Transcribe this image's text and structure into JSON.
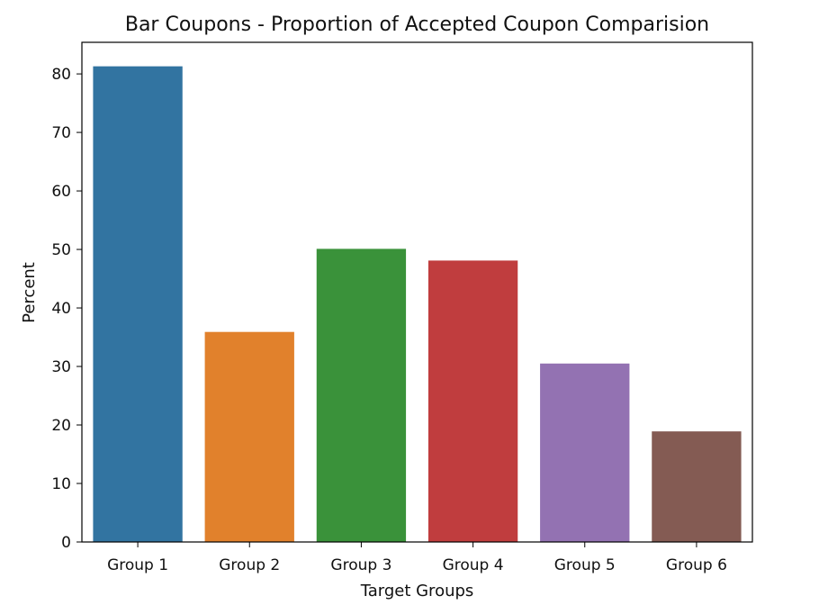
{
  "chart_data": {
    "type": "bar",
    "title": "Bar Coupons - Proportion of Accepted Coupon Comparision",
    "xlabel": "Target Groups",
    "ylabel": "Percent",
    "categories": [
      "Group 1",
      "Group 2",
      "Group 3",
      "Group 4",
      "Group 5",
      "Group 6"
    ],
    "values": [
      81.3,
      35.9,
      50.1,
      48.1,
      30.5,
      18.9
    ],
    "colors": [
      "#3274a1",
      "#e1812c",
      "#3a923a",
      "#c03d3e",
      "#9372b2",
      "#845b53"
    ],
    "ylim": [
      0,
      85.4
    ],
    "yticks": [
      0,
      10,
      20,
      30,
      40,
      50,
      60,
      70,
      80
    ],
    "grid": false,
    "legend": "none"
  }
}
